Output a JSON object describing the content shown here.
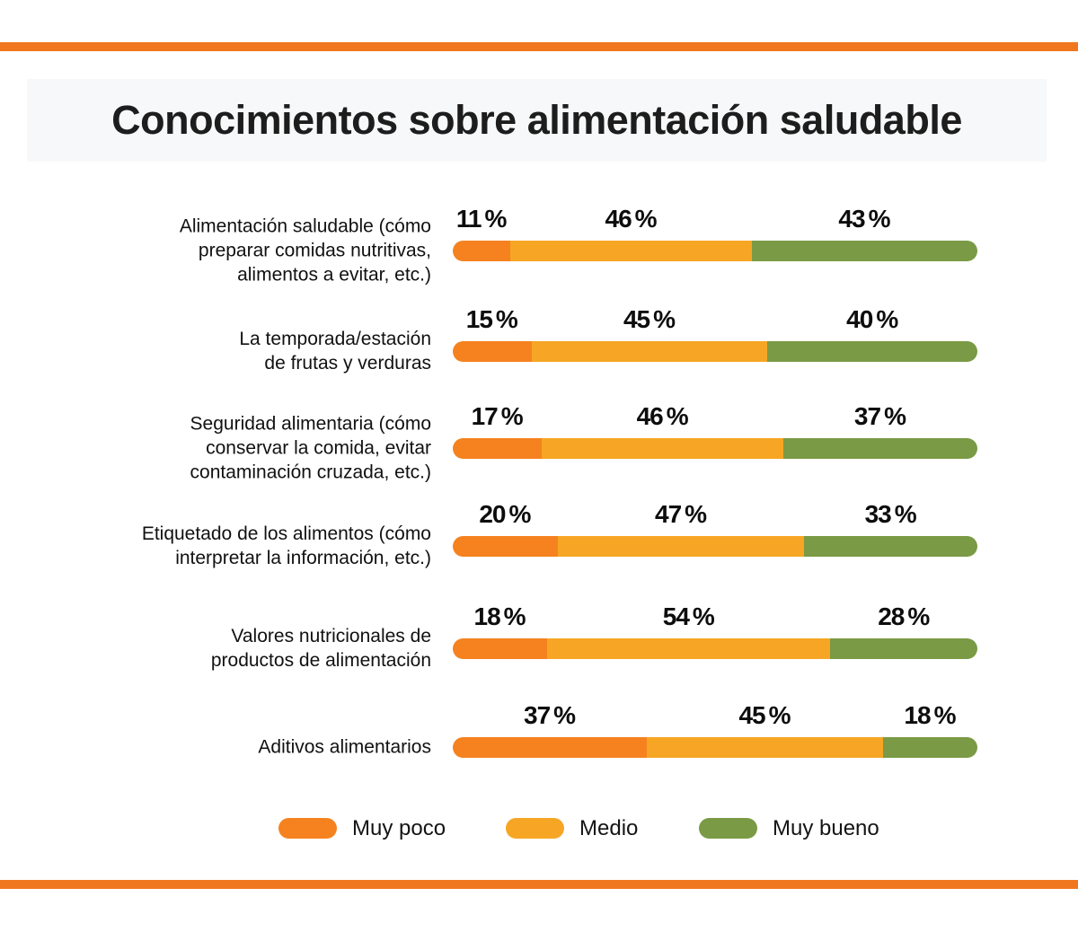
{
  "page": {
    "background": "#ffffff",
    "accent_rule_color": "#F1771F",
    "title_band_background": "#f7f8f9"
  },
  "chart_data": {
    "type": "bar",
    "variant": "horizontal-stacked",
    "title": "Conocimientos sobre alimentación saludable",
    "xlabel": "",
    "ylabel": "",
    "x_range": [
      0,
      100
    ],
    "grid": false,
    "legend_position": "bottom",
    "value_labels": "above-segments",
    "value_suffix": "%",
    "categories": [
      "Alimentación saludable (cómo\npreparar comidas nutritivas,\nalimentos a evitar, etc.)",
      "La temporada/estación\nde frutas y verduras",
      "Seguridad alimentaria (cómo\nconservar la comida, evitar\ncontaminación cruzada, etc.)",
      "Etiquetado de los alimentos (cómo\ninterpretar la información, etc.)",
      "Valores nutricionales de\nproductos de alimentación",
      "Aditivos alimentarios"
    ],
    "series": [
      {
        "name": "Muy poco",
        "color": "#F5821F",
        "values": [
          11,
          15,
          17,
          20,
          18,
          37
        ]
      },
      {
        "name": "Medio",
        "color": "#F6A624",
        "values": [
          46,
          45,
          46,
          47,
          54,
          45
        ]
      },
      {
        "name": "Muy bueno",
        "color": "#7A9A45",
        "values": [
          43,
          40,
          37,
          33,
          28,
          18
        ]
      }
    ]
  }
}
